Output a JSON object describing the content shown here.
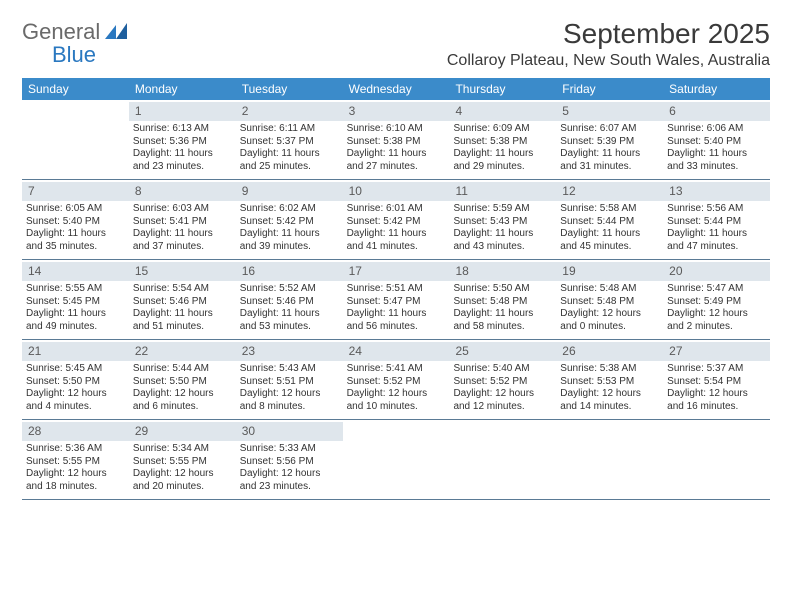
{
  "logo": {
    "line1": "General",
    "line2": "Blue"
  },
  "title": "September 2025",
  "subtitle": "Collaroy Plateau, New South Wales, Australia",
  "colors": {
    "header_bg": "#3b8bca",
    "header_text": "#ffffff",
    "daybar_bg": "#dfe6ec",
    "row_border": "#5a7a95",
    "logo_grey": "#6a6a6a",
    "logo_blue": "#2a78c0"
  },
  "day_headers": [
    "Sunday",
    "Monday",
    "Tuesday",
    "Wednesday",
    "Thursday",
    "Friday",
    "Saturday"
  ],
  "label_sunrise": "Sunrise:",
  "label_sunset": "Sunset:",
  "label_daylight": "Daylight:",
  "weeks": [
    [
      {
        "empty": true
      },
      {
        "n": "1",
        "sunrise": "6:13 AM",
        "sunset": "5:36 PM",
        "daylight": "11 hours and 23 minutes."
      },
      {
        "n": "2",
        "sunrise": "6:11 AM",
        "sunset": "5:37 PM",
        "daylight": "11 hours and 25 minutes."
      },
      {
        "n": "3",
        "sunrise": "6:10 AM",
        "sunset": "5:38 PM",
        "daylight": "11 hours and 27 minutes."
      },
      {
        "n": "4",
        "sunrise": "6:09 AM",
        "sunset": "5:38 PM",
        "daylight": "11 hours and 29 minutes."
      },
      {
        "n": "5",
        "sunrise": "6:07 AM",
        "sunset": "5:39 PM",
        "daylight": "11 hours and 31 minutes."
      },
      {
        "n": "6",
        "sunrise": "6:06 AM",
        "sunset": "5:40 PM",
        "daylight": "11 hours and 33 minutes."
      }
    ],
    [
      {
        "n": "7",
        "sunrise": "6:05 AM",
        "sunset": "5:40 PM",
        "daylight": "11 hours and 35 minutes."
      },
      {
        "n": "8",
        "sunrise": "6:03 AM",
        "sunset": "5:41 PM",
        "daylight": "11 hours and 37 minutes."
      },
      {
        "n": "9",
        "sunrise": "6:02 AM",
        "sunset": "5:42 PM",
        "daylight": "11 hours and 39 minutes."
      },
      {
        "n": "10",
        "sunrise": "6:01 AM",
        "sunset": "5:42 PM",
        "daylight": "11 hours and 41 minutes."
      },
      {
        "n": "11",
        "sunrise": "5:59 AM",
        "sunset": "5:43 PM",
        "daylight": "11 hours and 43 minutes."
      },
      {
        "n": "12",
        "sunrise": "5:58 AM",
        "sunset": "5:44 PM",
        "daylight": "11 hours and 45 minutes."
      },
      {
        "n": "13",
        "sunrise": "5:56 AM",
        "sunset": "5:44 PM",
        "daylight": "11 hours and 47 minutes."
      }
    ],
    [
      {
        "n": "14",
        "sunrise": "5:55 AM",
        "sunset": "5:45 PM",
        "daylight": "11 hours and 49 minutes."
      },
      {
        "n": "15",
        "sunrise": "5:54 AM",
        "sunset": "5:46 PM",
        "daylight": "11 hours and 51 minutes."
      },
      {
        "n": "16",
        "sunrise": "5:52 AM",
        "sunset": "5:46 PM",
        "daylight": "11 hours and 53 minutes."
      },
      {
        "n": "17",
        "sunrise": "5:51 AM",
        "sunset": "5:47 PM",
        "daylight": "11 hours and 56 minutes."
      },
      {
        "n": "18",
        "sunrise": "5:50 AM",
        "sunset": "5:48 PM",
        "daylight": "11 hours and 58 minutes."
      },
      {
        "n": "19",
        "sunrise": "5:48 AM",
        "sunset": "5:48 PM",
        "daylight": "12 hours and 0 minutes."
      },
      {
        "n": "20",
        "sunrise": "5:47 AM",
        "sunset": "5:49 PM",
        "daylight": "12 hours and 2 minutes."
      }
    ],
    [
      {
        "n": "21",
        "sunrise": "5:45 AM",
        "sunset": "5:50 PM",
        "daylight": "12 hours and 4 minutes."
      },
      {
        "n": "22",
        "sunrise": "5:44 AM",
        "sunset": "5:50 PM",
        "daylight": "12 hours and 6 minutes."
      },
      {
        "n": "23",
        "sunrise": "5:43 AM",
        "sunset": "5:51 PM",
        "daylight": "12 hours and 8 minutes."
      },
      {
        "n": "24",
        "sunrise": "5:41 AM",
        "sunset": "5:52 PM",
        "daylight": "12 hours and 10 minutes."
      },
      {
        "n": "25",
        "sunrise": "5:40 AM",
        "sunset": "5:52 PM",
        "daylight": "12 hours and 12 minutes."
      },
      {
        "n": "26",
        "sunrise": "5:38 AM",
        "sunset": "5:53 PM",
        "daylight": "12 hours and 14 minutes."
      },
      {
        "n": "27",
        "sunrise": "5:37 AM",
        "sunset": "5:54 PM",
        "daylight": "12 hours and 16 minutes."
      }
    ],
    [
      {
        "n": "28",
        "sunrise": "5:36 AM",
        "sunset": "5:55 PM",
        "daylight": "12 hours and 18 minutes."
      },
      {
        "n": "29",
        "sunrise": "5:34 AM",
        "sunset": "5:55 PM",
        "daylight": "12 hours and 20 minutes."
      },
      {
        "n": "30",
        "sunrise": "5:33 AM",
        "sunset": "5:56 PM",
        "daylight": "12 hours and 23 minutes."
      },
      {
        "empty": true
      },
      {
        "empty": true
      },
      {
        "empty": true
      },
      {
        "empty": true
      }
    ]
  ]
}
